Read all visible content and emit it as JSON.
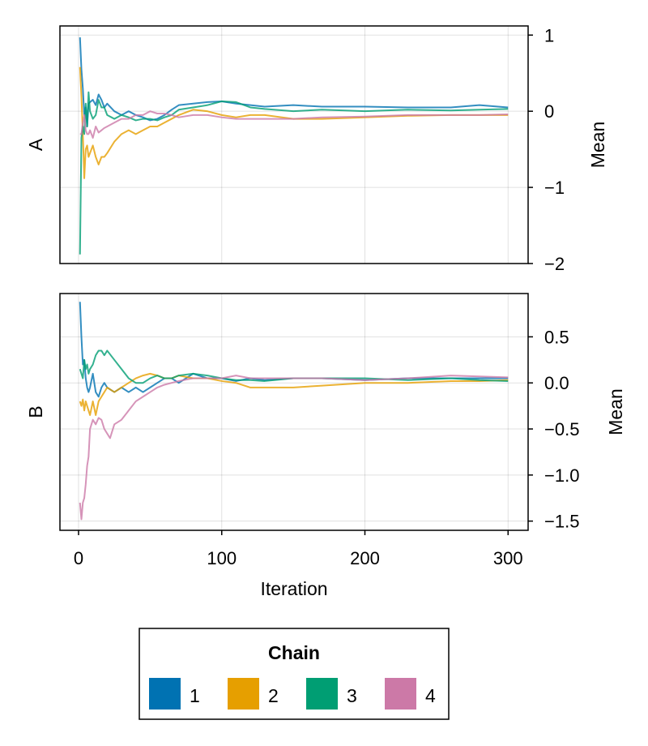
{
  "chart_data": {
    "type": "line",
    "xlabel": "Iteration",
    "x_ticks": [
      0,
      100,
      200,
      300
    ],
    "xlim": [
      -13,
      314
    ],
    "legend": {
      "title": "Chain",
      "placement": "bottom-center",
      "entries": [
        "1",
        "2",
        "3",
        "4"
      ]
    },
    "colors": [
      "#0072b2",
      "#e69f00",
      "#009e73",
      "#cc79a7"
    ],
    "grid": true,
    "panels": [
      {
        "label": "A",
        "ylabel": "Mean",
        "ylim": [
          -2.0,
          1.12
        ],
        "y_ticks": [
          1,
          0,
          -1,
          -2
        ],
        "y_tick_labels": [
          "1",
          "0",
          "−1",
          "−2"
        ],
        "series": [
          {
            "name": "1",
            "x": [
              1,
              2,
              3,
              4,
              5,
              6,
              7,
              8,
              10,
              12,
              14,
              16,
              18,
              20,
              25,
              30,
              35,
              40,
              45,
              50,
              55,
              60,
              65,
              70,
              80,
              90,
              100,
              110,
              120,
              130,
              150,
              170,
              200,
              230,
              260,
              280,
              300
            ],
            "y": [
              0.97,
              0.55,
              0.3,
              -0.05,
              0.05,
              -0.2,
              0.1,
              0.12,
              0.15,
              0.08,
              0.22,
              0.15,
              0.05,
              0.1,
              0.0,
              -0.05,
              0.0,
              -0.05,
              -0.08,
              -0.12,
              -0.1,
              -0.05,
              0.02,
              0.08,
              0.1,
              0.12,
              0.13,
              0.1,
              0.08,
              0.06,
              0.08,
              0.06,
              0.06,
              0.05,
              0.05,
              0.08,
              0.05
            ]
          },
          {
            "name": "2",
            "x": [
              1,
              2,
              3,
              4,
              5,
              6,
              7,
              8,
              10,
              12,
              14,
              16,
              18,
              20,
              25,
              30,
              35,
              40,
              45,
              50,
              55,
              60,
              65,
              70,
              80,
              90,
              100,
              110,
              120,
              130,
              150,
              170,
              200,
              230,
              260,
              280,
              300
            ],
            "y": [
              0.58,
              0.2,
              -0.3,
              -0.88,
              -0.5,
              -0.45,
              -0.6,
              -0.55,
              -0.45,
              -0.6,
              -0.7,
              -0.6,
              -0.6,
              -0.55,
              -0.4,
              -0.3,
              -0.25,
              -0.3,
              -0.25,
              -0.2,
              -0.2,
              -0.15,
              -0.1,
              -0.05,
              0.02,
              0.0,
              -0.05,
              -0.08,
              -0.05,
              -0.05,
              -0.1,
              -0.1,
              -0.08,
              -0.06,
              -0.05,
              -0.05,
              -0.05
            ]
          },
          {
            "name": "3",
            "x": [
              1,
              2,
              3,
              4,
              5,
              6,
              7,
              8,
              10,
              12,
              14,
              16,
              18,
              20,
              25,
              30,
              35,
              40,
              45,
              50,
              55,
              60,
              65,
              70,
              80,
              90,
              100,
              110,
              120,
              130,
              150,
              170,
              200,
              230,
              260,
              280,
              300
            ],
            "y": [
              -1.88,
              -0.35,
              -0.2,
              -0.3,
              0.1,
              -0.2,
              0.25,
              0.0,
              -0.1,
              -0.05,
              0.15,
              0.05,
              0.05,
              -0.05,
              -0.1,
              -0.05,
              -0.08,
              -0.12,
              -0.1,
              -0.1,
              -0.12,
              -0.08,
              -0.05,
              0.02,
              0.05,
              0.08,
              0.13,
              0.12,
              0.05,
              0.03,
              0.0,
              0.02,
              0.0,
              0.02,
              0.01,
              0.02,
              0.03
            ]
          },
          {
            "name": "4",
            "x": [
              1,
              2,
              3,
              4,
              5,
              6,
              7,
              8,
              10,
              12,
              14,
              16,
              18,
              20,
              25,
              30,
              35,
              40,
              45,
              50,
              55,
              60,
              65,
              70,
              80,
              90,
              100,
              110,
              120,
              130,
              150,
              170,
              200,
              230,
              260,
              280,
              300
            ],
            "y": [
              -0.3,
              -0.3,
              -0.15,
              -0.05,
              -0.25,
              -0.3,
              -0.3,
              -0.25,
              -0.35,
              -0.2,
              -0.28,
              -0.25,
              -0.22,
              -0.2,
              -0.15,
              -0.1,
              -0.1,
              -0.05,
              -0.05,
              0.0,
              -0.03,
              -0.03,
              -0.05,
              -0.08,
              -0.05,
              -0.05,
              -0.08,
              -0.1,
              -0.1,
              -0.1,
              -0.1,
              -0.08,
              -0.07,
              -0.05,
              -0.05,
              -0.05,
              -0.04
            ]
          }
        ]
      },
      {
        "label": "B",
        "ylabel": "Mean",
        "ylim": [
          -1.6,
          0.97
        ],
        "y_ticks": [
          0.5,
          0.0,
          -0.5,
          -1.0,
          -1.5
        ],
        "y_tick_labels": [
          "0.5",
          "0.0",
          "−0.5",
          "−1.0",
          "−1.5"
        ],
        "series": [
          {
            "name": "1",
            "x": [
              1,
              2,
              3,
              4,
              5,
              6,
              7,
              8,
              10,
              12,
              14,
              16,
              18,
              20,
              25,
              30,
              35,
              40,
              45,
              50,
              55,
              60,
              65,
              70,
              80,
              90,
              100,
              110,
              120,
              130,
              150,
              170,
              200,
              230,
              260,
              280,
              300
            ],
            "y": [
              0.88,
              0.5,
              0.2,
              0.25,
              0.05,
              -0.05,
              -0.1,
              -0.05,
              0.1,
              -0.1,
              -0.15,
              -0.05,
              0.0,
              -0.05,
              -0.1,
              -0.05,
              -0.1,
              -0.05,
              -0.1,
              -0.05,
              0.0,
              0.05,
              0.05,
              0.0,
              0.1,
              0.05,
              0.05,
              0.02,
              0.05,
              0.03,
              0.05,
              0.05,
              0.03,
              0.05,
              0.05,
              0.05,
              0.05
            ]
          },
          {
            "name": "2",
            "x": [
              1,
              2,
              3,
              4,
              5,
              6,
              7,
              8,
              10,
              12,
              14,
              16,
              18,
              20,
              25,
              30,
              35,
              40,
              45,
              50,
              55,
              60,
              65,
              70,
              80,
              90,
              100,
              110,
              120,
              130,
              150,
              170,
              200,
              230,
              260,
              280,
              300
            ],
            "y": [
              -0.2,
              -0.25,
              -0.18,
              -0.3,
              -0.2,
              -0.25,
              -0.3,
              -0.35,
              -0.2,
              -0.35,
              -0.2,
              -0.15,
              -0.1,
              -0.05,
              -0.1,
              -0.05,
              0.0,
              0.05,
              0.08,
              0.1,
              0.08,
              0.05,
              0.05,
              0.08,
              0.05,
              0.05,
              0.02,
              0.0,
              -0.05,
              -0.05,
              -0.05,
              -0.03,
              0.0,
              0.0,
              0.02,
              0.02,
              0.03
            ]
          },
          {
            "name": "3",
            "x": [
              1,
              2,
              3,
              4,
              5,
              6,
              7,
              8,
              10,
              12,
              14,
              16,
              18,
              20,
              25,
              30,
              35,
              40,
              45,
              50,
              55,
              60,
              65,
              70,
              80,
              90,
              100,
              110,
              120,
              130,
              150,
              170,
              200,
              230,
              260,
              280,
              300
            ],
            "y": [
              0.15,
              0.1,
              0.05,
              0.25,
              0.15,
              0.2,
              0.1,
              0.15,
              0.2,
              0.3,
              0.35,
              0.35,
              0.3,
              0.35,
              0.25,
              0.15,
              0.05,
              0.0,
              0.0,
              0.05,
              0.08,
              0.05,
              0.05,
              0.08,
              0.1,
              0.08,
              0.05,
              0.03,
              0.03,
              0.02,
              0.05,
              0.05,
              0.05,
              0.03,
              0.05,
              0.03,
              0.02
            ]
          },
          {
            "name": "4",
            "x": [
              1,
              2,
              3,
              4,
              5,
              6,
              7,
              8,
              10,
              12,
              14,
              16,
              18,
              20,
              22,
              25,
              30,
              35,
              40,
              45,
              50,
              55,
              60,
              65,
              70,
              80,
              90,
              100,
              110,
              120,
              130,
              150,
              170,
              200,
              230,
              260,
              300
            ],
            "y": [
              -1.3,
              -1.48,
              -1.3,
              -1.25,
              -1.1,
              -0.9,
              -0.8,
              -0.5,
              -0.4,
              -0.45,
              -0.38,
              -0.4,
              -0.5,
              -0.55,
              -0.6,
              -0.45,
              -0.4,
              -0.3,
              -0.2,
              -0.15,
              -0.1,
              -0.05,
              -0.02,
              0.0,
              0.02,
              0.05,
              0.05,
              0.05,
              0.08,
              0.05,
              0.05,
              0.05,
              0.05,
              0.03,
              0.05,
              0.08,
              0.06
            ]
          }
        ]
      }
    ]
  }
}
